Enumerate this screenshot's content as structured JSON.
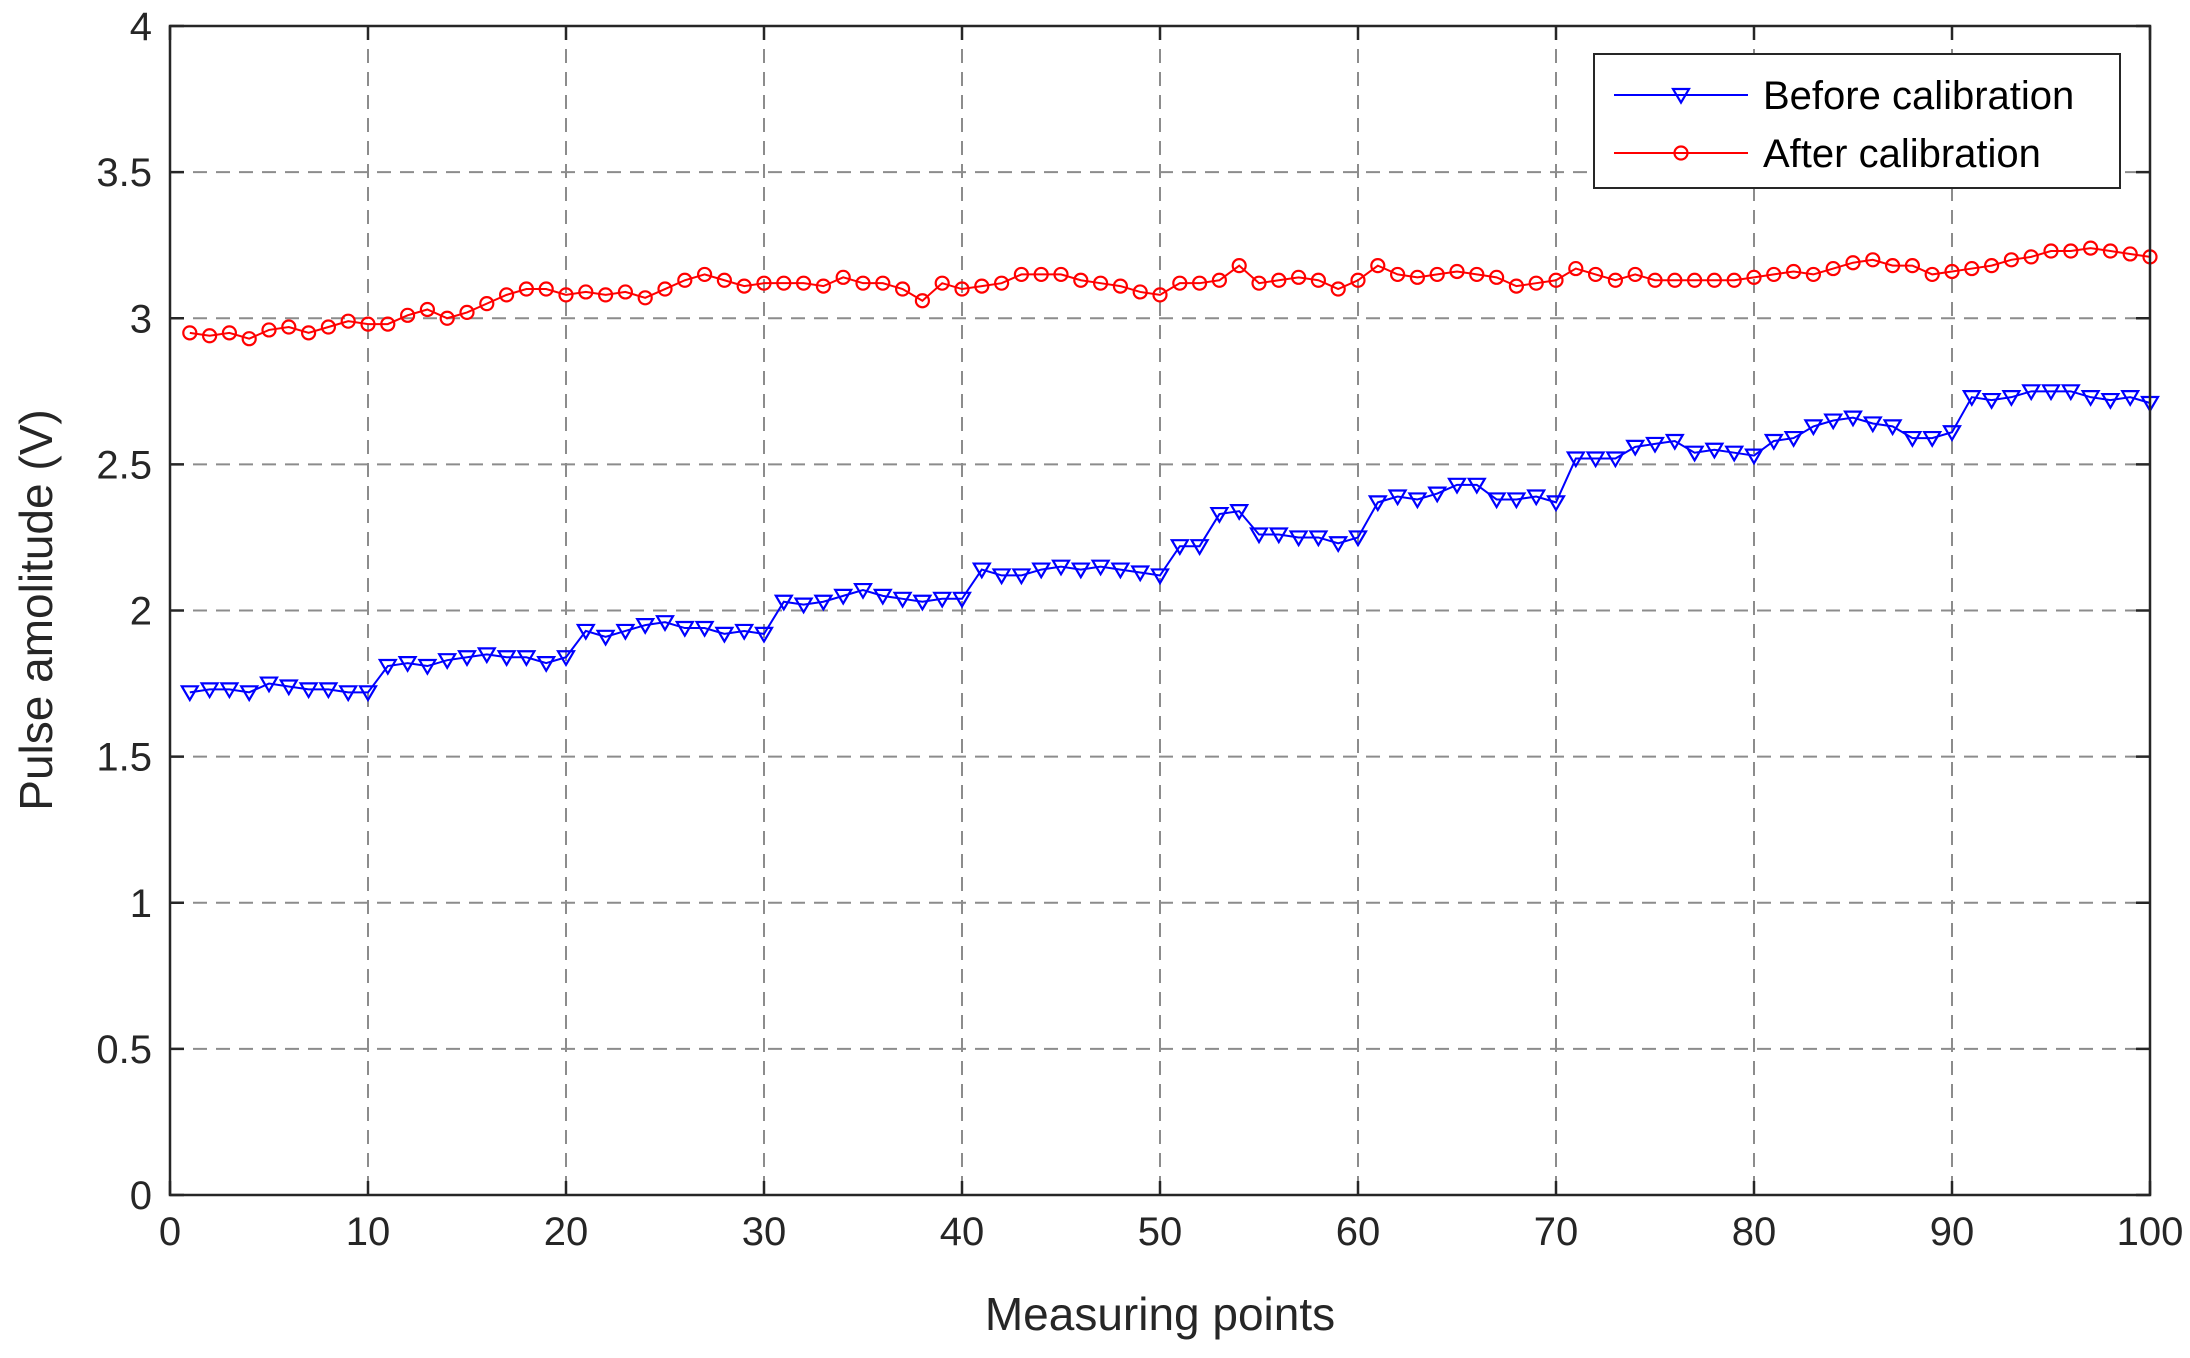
{
  "chart_data": {
    "type": "line",
    "xlabel": "Measuring points",
    "ylabel": "Pulse amolitude (V)",
    "xlim": [
      0,
      100
    ],
    "ylim": [
      0,
      4
    ],
    "xticks": [
      0,
      10,
      20,
      30,
      40,
      50,
      60,
      70,
      80,
      90,
      100
    ],
    "yticks": [
      0,
      0.5,
      1,
      1.5,
      2,
      2.5,
      3,
      3.5,
      4
    ],
    "ytick_labels": [
      "0",
      "0.5",
      "1",
      "1.5",
      "2",
      "2.5",
      "3",
      "3.5",
      "4"
    ],
    "grid": true,
    "legend_position": "top-right",
    "x": [
      1,
      2,
      3,
      4,
      5,
      6,
      7,
      8,
      9,
      10,
      11,
      12,
      13,
      14,
      15,
      16,
      17,
      18,
      19,
      20,
      21,
      22,
      23,
      24,
      25,
      26,
      27,
      28,
      29,
      30,
      31,
      32,
      33,
      34,
      35,
      36,
      37,
      38,
      39,
      40,
      41,
      42,
      43,
      44,
      45,
      46,
      47,
      48,
      49,
      50,
      51,
      52,
      53,
      54,
      55,
      56,
      57,
      58,
      59,
      60,
      61,
      62,
      63,
      64,
      65,
      66,
      67,
      68,
      69,
      70,
      71,
      72,
      73,
      74,
      75,
      76,
      77,
      78,
      79,
      80,
      81,
      82,
      83,
      84,
      85,
      86,
      87,
      88,
      89,
      90,
      91,
      92,
      93,
      94,
      95,
      96,
      97,
      98,
      99,
      100
    ],
    "series": [
      {
        "name": "Before calibration",
        "color": "#0000ff",
        "marker": "triangle-down",
        "values": [
          1.72,
          1.73,
          1.73,
          1.72,
          1.75,
          1.74,
          1.73,
          1.73,
          1.72,
          1.72,
          1.81,
          1.82,
          1.81,
          1.83,
          1.84,
          1.85,
          1.84,
          1.84,
          1.82,
          1.84,
          1.93,
          1.91,
          1.93,
          1.95,
          1.96,
          1.94,
          1.94,
          1.92,
          1.93,
          1.92,
          2.03,
          2.02,
          2.03,
          2.05,
          2.07,
          2.05,
          2.04,
          2.03,
          2.04,
          2.04,
          2.14,
          2.12,
          2.12,
          2.14,
          2.15,
          2.14,
          2.15,
          2.14,
          2.13,
          2.12,
          2.22,
          2.22,
          2.33,
          2.34,
          2.26,
          2.26,
          2.25,
          2.25,
          2.23,
          2.25,
          2.37,
          2.39,
          2.38,
          2.4,
          2.43,
          2.43,
          2.38,
          2.38,
          2.39,
          2.37,
          2.52,
          2.52,
          2.52,
          2.56,
          2.57,
          2.58,
          2.54,
          2.55,
          2.54,
          2.53,
          2.58,
          2.59,
          2.63,
          2.65,
          2.66,
          2.64,
          2.63,
          2.59,
          2.59,
          2.61,
          2.73,
          2.72,
          2.73,
          2.75,
          2.75,
          2.75,
          2.73,
          2.72,
          2.73,
          2.71
        ]
      },
      {
        "name": "After calibration",
        "color": "#ff0000",
        "marker": "circle",
        "values": [
          2.95,
          2.94,
          2.95,
          2.93,
          2.96,
          2.97,
          2.95,
          2.97,
          2.99,
          2.98,
          2.98,
          3.01,
          3.03,
          3.0,
          3.02,
          3.05,
          3.08,
          3.1,
          3.1,
          3.08,
          3.09,
          3.08,
          3.09,
          3.07,
          3.1,
          3.13,
          3.15,
          3.13,
          3.11,
          3.12,
          3.12,
          3.12,
          3.11,
          3.14,
          3.12,
          3.12,
          3.1,
          3.06,
          3.12,
          3.1,
          3.11,
          3.12,
          3.15,
          3.15,
          3.15,
          3.13,
          3.12,
          3.11,
          3.09,
          3.08,
          3.12,
          3.12,
          3.13,
          3.18,
          3.12,
          3.13,
          3.14,
          3.13,
          3.1,
          3.13,
          3.18,
          3.15,
          3.14,
          3.15,
          3.16,
          3.15,
          3.14,
          3.11,
          3.12,
          3.13,
          3.17,
          3.15,
          3.13,
          3.15,
          3.13,
          3.13,
          3.13,
          3.13,
          3.13,
          3.14,
          3.15,
          3.16,
          3.15,
          3.17,
          3.19,
          3.2,
          3.18,
          3.18,
          3.15,
          3.16,
          3.17,
          3.18,
          3.2,
          3.21,
          3.23,
          3.23,
          3.24,
          3.23,
          3.22,
          3.21
        ]
      }
    ]
  }
}
